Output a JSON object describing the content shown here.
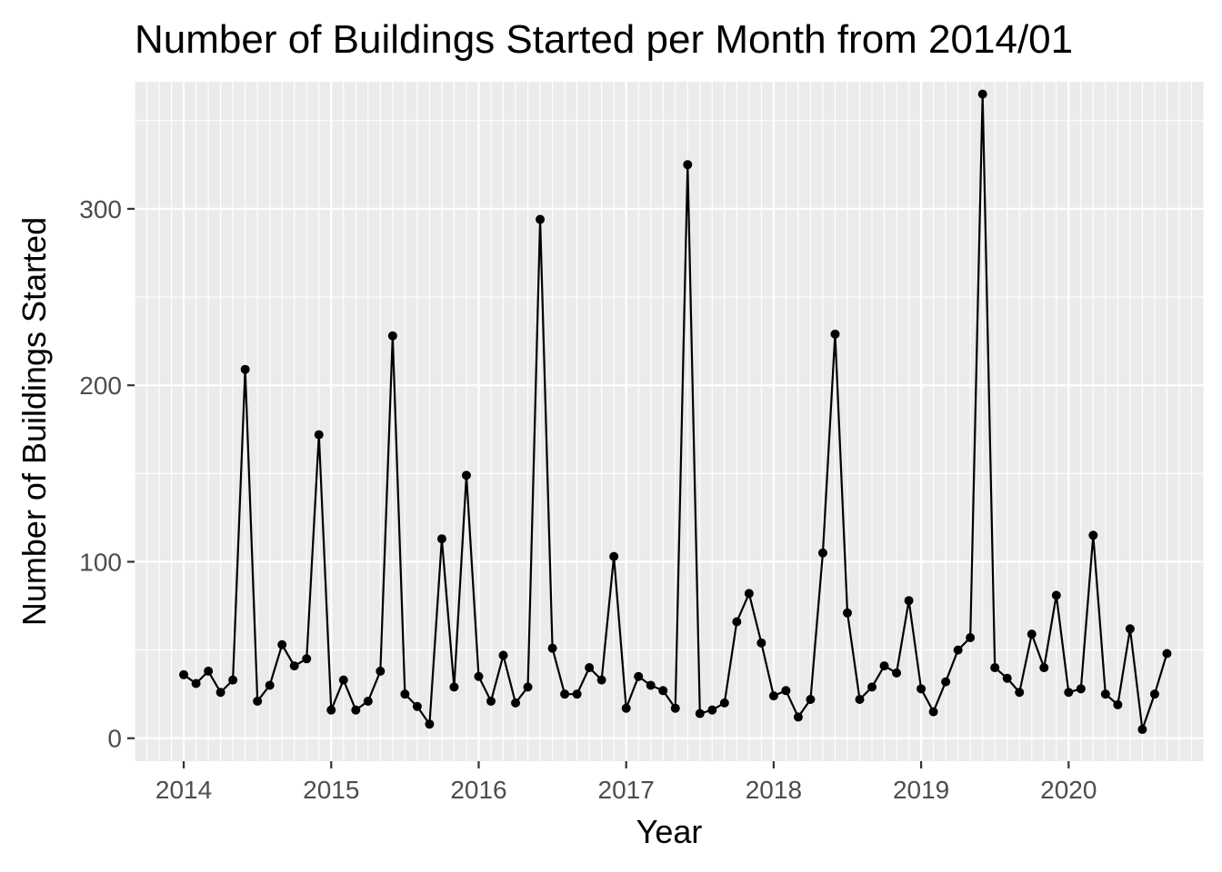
{
  "chart_data": {
    "type": "line",
    "title": "Number of Buildings Started per Month from 2014/01",
    "xlabel": "Year",
    "ylabel": "Number of Buildings Started",
    "x_tick_labels": [
      "2014",
      "2015",
      "2016",
      "2017",
      "2018",
      "2019",
      "2020"
    ],
    "y_ticks": [
      0,
      100,
      200,
      300
    ],
    "ylim": [
      -13,
      372
    ],
    "xlim": [
      "2013-09",
      "2020-12"
    ],
    "grid": true,
    "legend": "none",
    "colors": {
      "panel": "#ebebeb",
      "grid": "#ffffff",
      "line": "#000000",
      "point": "#000000"
    },
    "series": [
      {
        "x": [
          "2014-01",
          "2014-02",
          "2014-03",
          "2014-04",
          "2014-05",
          "2014-06",
          "2014-07",
          "2014-08",
          "2014-09",
          "2014-10",
          "2014-11",
          "2014-12",
          "2015-01",
          "2015-02",
          "2015-03",
          "2015-04",
          "2015-05",
          "2015-06",
          "2015-07",
          "2015-08",
          "2015-09",
          "2015-10",
          "2015-11",
          "2015-12",
          "2016-01",
          "2016-02",
          "2016-03",
          "2016-04",
          "2016-05",
          "2016-06",
          "2016-07",
          "2016-08",
          "2016-09",
          "2016-10",
          "2016-11",
          "2016-12",
          "2017-01",
          "2017-02",
          "2017-03",
          "2017-04",
          "2017-05",
          "2017-06",
          "2017-07",
          "2017-08",
          "2017-09",
          "2017-10",
          "2017-11",
          "2017-12",
          "2018-01",
          "2018-02",
          "2018-03",
          "2018-04",
          "2018-05",
          "2018-06",
          "2018-07",
          "2018-08",
          "2018-09",
          "2018-10",
          "2018-11",
          "2018-12",
          "2019-01",
          "2019-02",
          "2019-03",
          "2019-04",
          "2019-05",
          "2019-06",
          "2019-07",
          "2019-08",
          "2019-09",
          "2019-10",
          "2019-11",
          "2019-12",
          "2020-01",
          "2020-02",
          "2020-03",
          "2020-04",
          "2020-05",
          "2020-06",
          "2020-07",
          "2020-08",
          "2020-09"
        ],
        "values": [
          36,
          31,
          38,
          26,
          33,
          209,
          21,
          30,
          53,
          41,
          45,
          172,
          16,
          33,
          16,
          21,
          38,
          228,
          25,
          18,
          8,
          113,
          29,
          149,
          35,
          21,
          47,
          20,
          29,
          294,
          51,
          25,
          25,
          40,
          33,
          103,
          17,
          35,
          30,
          27,
          17,
          325,
          14,
          16,
          20,
          66,
          82,
          54,
          24,
          27,
          12,
          22,
          105,
          229,
          71,
          22,
          29,
          41,
          37,
          78,
          28,
          15,
          32,
          50,
          57,
          365,
          40,
          34,
          26,
          59,
          40,
          81,
          26,
          28,
          115,
          25,
          19,
          62,
          5,
          25,
          48
        ]
      }
    ]
  }
}
